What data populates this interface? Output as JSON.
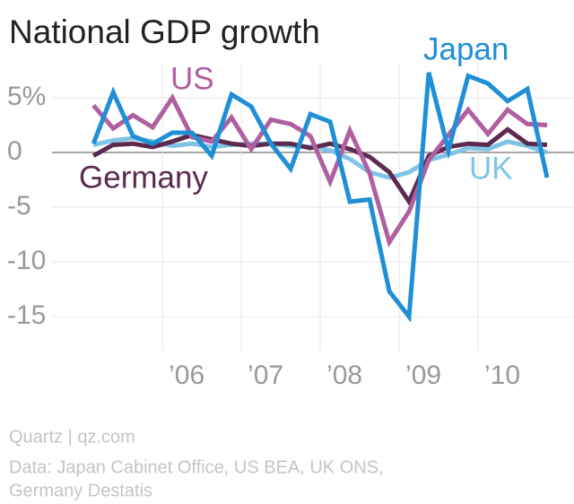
{
  "chart_data": {
    "type": "line",
    "title": "National GDP growth",
    "x": [
      2005.125,
      2005.375,
      2005.625,
      2005.875,
      2006.125,
      2006.375,
      2006.625,
      2006.875,
      2007.125,
      2007.375,
      2007.625,
      2007.875,
      2008.125,
      2008.375,
      2008.625,
      2008.875,
      2009.125,
      2009.375,
      2009.625,
      2009.875,
      2010.125,
      2010.375,
      2010.625,
      2010.875
    ],
    "series": [
      {
        "name": "Japan",
        "color": "#1f8fd6",
        "values": [
          0.8,
          5.5,
          1.5,
          0.8,
          1.8,
          1.8,
          -0.3,
          5.3,
          4.2,
          0.8,
          -1.5,
          3.5,
          2.8,
          -4.5,
          -4.3,
          -12.7,
          -15,
          7.3,
          0.2,
          7.0,
          6.3,
          4.7,
          5.8,
          -2.3
        ]
      },
      {
        "name": "US",
        "color": "#b05fa0",
        "values": [
          4.3,
          2.2,
          3.4,
          2.3,
          5.0,
          1.4,
          1.0,
          3.2,
          0.3,
          3.0,
          2.6,
          1.5,
          -2.7,
          2.0,
          -1.9,
          -8.2,
          -5.4,
          -0.7,
          1.6,
          3.9,
          1.7,
          3.9,
          2.6,
          2.5
        ]
      },
      {
        "name": "UK",
        "color": "#7fc4e8",
        "values": [
          0.7,
          1.1,
          1.3,
          1.0,
          0.6,
          0.8,
          0.5,
          0.7,
          0.8,
          0.8,
          0.6,
          0.5,
          0.2,
          -0.6,
          -1.8,
          -2.3,
          -1.8,
          -0.7,
          -0.2,
          0.4,
          0.3,
          1.0,
          0.6,
          0.0
        ]
      },
      {
        "name": "Germany",
        "color": "#5c2a4f",
        "values": [
          -0.3,
          0.7,
          0.8,
          0.5,
          1.0,
          1.6,
          1.2,
          0.8,
          0.6,
          0.8,
          0.8,
          0.4,
          0.8,
          0.3,
          -0.4,
          -1.8,
          -4.5,
          -0.3,
          0.5,
          0.8,
          0.7,
          2.1,
          0.8,
          0.7
        ]
      }
    ],
    "xlim": [
      2004.6,
      2011.2
    ],
    "xticks": [
      {
        "value": 2006,
        "label": "’06"
      },
      {
        "value": 2007,
        "label": "’07"
      },
      {
        "value": 2008,
        "label": "’08"
      },
      {
        "value": 2009,
        "label": "’09"
      },
      {
        "value": 2010,
        "label": "’10"
      }
    ],
    "ylim": [
      -17.5,
      7.5
    ],
    "yticks": [
      {
        "value": 5,
        "label": "5%"
      },
      0,
      -5,
      -10,
      -15
    ],
    "grid": true,
    "footer": [
      "Quartz | qz.com",
      "Data: Japan Cabinet Office, US BEA, UK ONS,",
      "Germany Destatis"
    ]
  }
}
